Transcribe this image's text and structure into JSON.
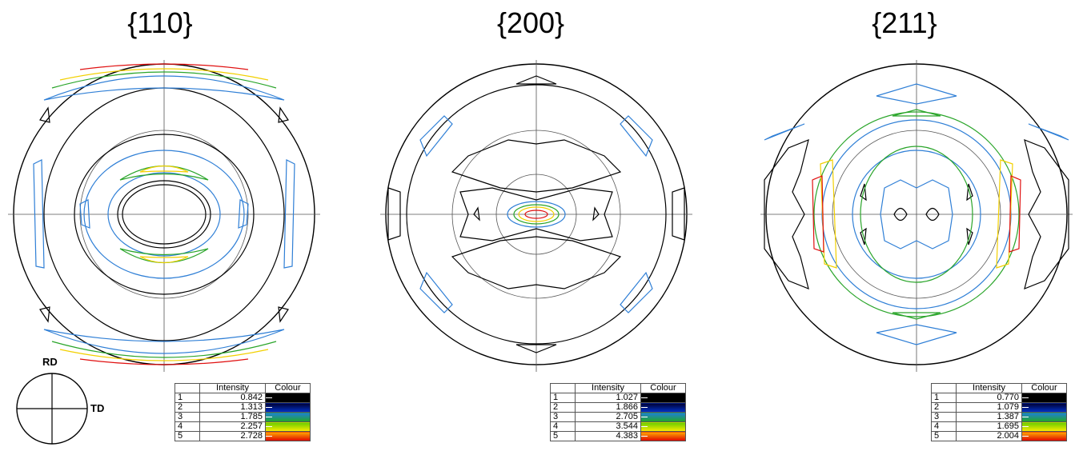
{
  "figures": [
    {
      "id": "110",
      "title": "{110}",
      "legend": {
        "headers": [
          "",
          "Intensity",
          "Colour"
        ],
        "rows": [
          [
            "1",
            "0.842"
          ],
          [
            "2",
            "1.313"
          ],
          [
            "3",
            "1.785"
          ],
          [
            "4",
            "2.257"
          ],
          [
            "5",
            "2.728"
          ]
        ]
      }
    },
    {
      "id": "200",
      "title": "{200}",
      "legend": {
        "headers": [
          "",
          "Intensity",
          "Colour"
        ],
        "rows": [
          [
            "1",
            "1.027"
          ],
          [
            "2",
            "1.866"
          ],
          [
            "3",
            "2.705"
          ],
          [
            "4",
            "3.544"
          ],
          [
            "5",
            "4.383"
          ]
        ]
      }
    },
    {
      "id": "211",
      "title": "{211}",
      "legend": {
        "headers": [
          "",
          "Intensity",
          "Colour"
        ],
        "rows": [
          [
            "1",
            "0.770"
          ],
          [
            "2",
            "1.079"
          ],
          [
            "3",
            "1.387"
          ],
          [
            "4",
            "1.695"
          ],
          [
            "5",
            "2.004"
          ]
        ]
      }
    }
  ],
  "axes": {
    "rd": "RD",
    "td": "TD"
  },
  "colors": {
    "level1": "#000000",
    "level2": "#2f7fd6",
    "level3": "#2aa52a",
    "level4": "#f2d000",
    "level5": "#e01010",
    "grid": "#555555"
  }
}
